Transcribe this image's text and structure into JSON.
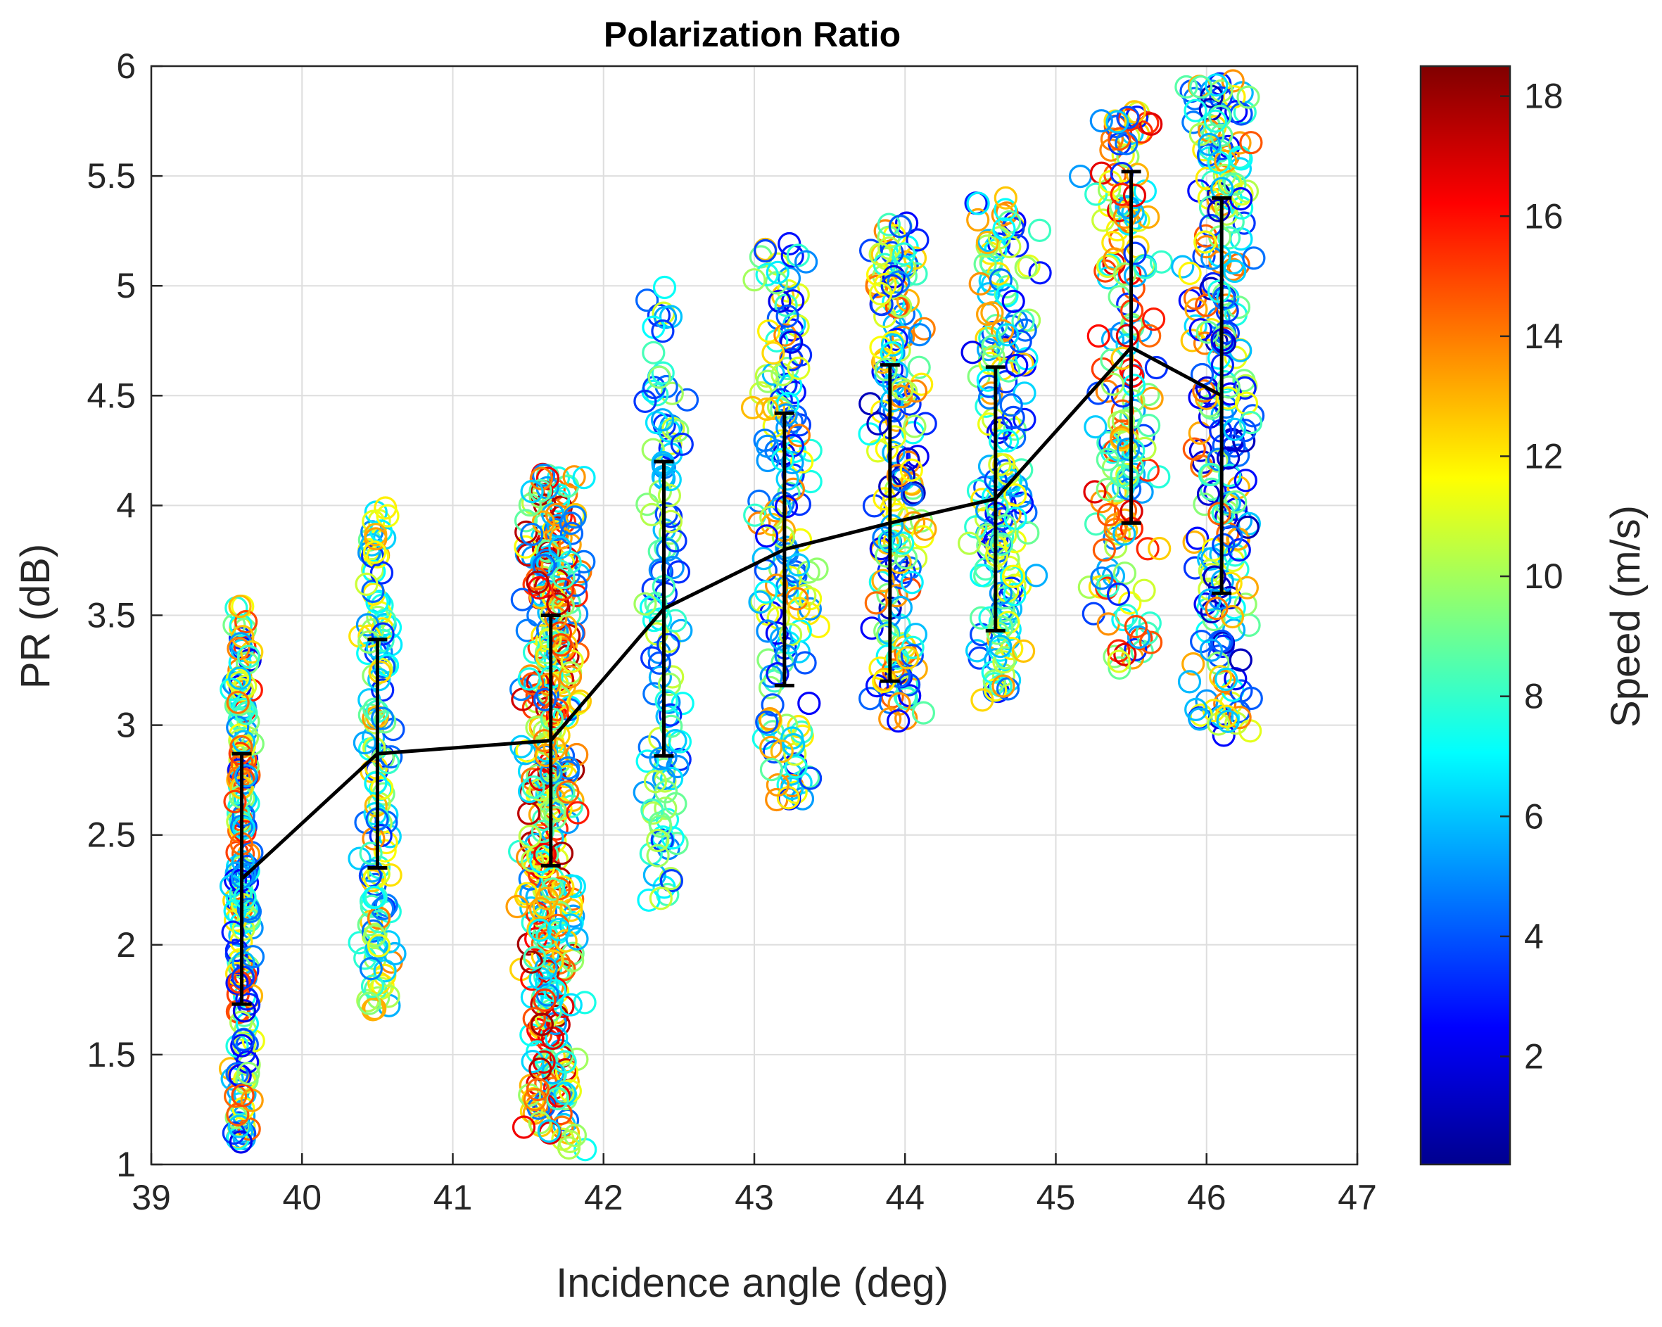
{
  "chart_data": {
    "type": "scatter",
    "title": "Polarization Ratio",
    "xlabel": "Incidence angle (deg)",
    "ylabel": "PR (dB)",
    "xlim": [
      39,
      47
    ],
    "ylim": [
      1,
      6
    ],
    "xticks": [
      "39",
      "40",
      "41",
      "42",
      "43",
      "44",
      "45",
      "46",
      "47"
    ],
    "yticks": [
      "1",
      "1.5",
      "2",
      "2.5",
      "3",
      "3.5",
      "4",
      "4.5",
      "5",
      "5.5",
      "6"
    ],
    "grid": true,
    "colorbar": {
      "label": "Speed (m/s)",
      "colormap": "jet",
      "range": [
        0.2,
        18.5
      ],
      "ticks": [
        "2",
        "4",
        "6",
        "8",
        "10",
        "12",
        "14",
        "16",
        "18"
      ]
    },
    "mean_line": {
      "name": "Mean PR with std error bars",
      "x": [
        39.6,
        40.5,
        41.65,
        42.4,
        43.2,
        43.9,
        44.6,
        45.5,
        46.1
      ],
      "y": [
        2.3,
        2.87,
        2.93,
        3.53,
        3.8,
        3.92,
        4.03,
        4.72,
        4.5
      ],
      "err": [
        0.57,
        0.52,
        0.57,
        0.67,
        0.62,
        0.72,
        0.6,
        0.8,
        0.9
      ]
    },
    "scatter_clusters": [
      {
        "x": 39.6,
        "xspread": 0.05,
        "ymin": 1.1,
        "ymax": 3.55,
        "speed_range": [
          2,
          16
        ],
        "n": 220
      },
      {
        "x": 40.5,
        "xspread": 0.07,
        "ymin": 1.7,
        "ymax": 4.0,
        "speed_range": [
          3,
          14
        ],
        "n": 150
      },
      {
        "x": 41.65,
        "xspread": 0.14,
        "ymin": 1.05,
        "ymax": 4.15,
        "speed_range": [
          4,
          18
        ],
        "n": 450
      },
      {
        "x": 42.4,
        "xspread": 0.09,
        "ymin": 2.2,
        "ymax": 5.0,
        "speed_range": [
          3,
          11
        ],
        "n": 120
      },
      {
        "x": 43.2,
        "xspread": 0.14,
        "ymin": 2.65,
        "ymax": 5.2,
        "speed_range": [
          2,
          14
        ],
        "n": 170
      },
      {
        "x": 43.95,
        "xspread": 0.12,
        "ymin": 2.95,
        "ymax": 5.3,
        "speed_range": [
          1,
          15
        ],
        "n": 190
      },
      {
        "x": 44.65,
        "xspread": 0.14,
        "ymin": 3.1,
        "ymax": 5.4,
        "speed_range": [
          2,
          14
        ],
        "n": 190
      },
      {
        "x": 45.45,
        "xspread": 0.16,
        "ymin": 3.25,
        "ymax": 5.8,
        "speed_range": [
          3,
          17
        ],
        "n": 180
      },
      {
        "x": 46.1,
        "xspread": 0.16,
        "ymin": 2.95,
        "ymax": 5.95,
        "speed_range": [
          1,
          15
        ],
        "n": 260
      }
    ]
  }
}
